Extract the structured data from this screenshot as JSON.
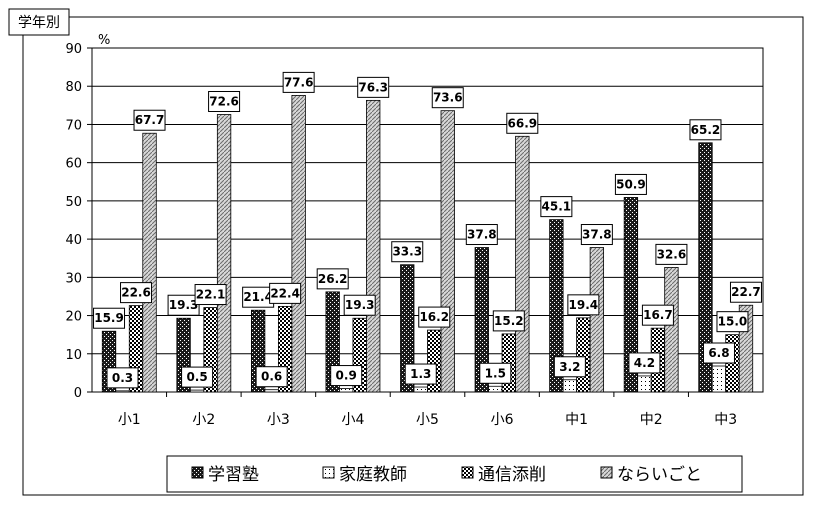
{
  "chart_data": {
    "type": "bar",
    "title": "学年別",
    "ylabel": "%",
    "ylim": [
      0,
      90
    ],
    "yticks": [
      0,
      10,
      20,
      30,
      40,
      50,
      60,
      70,
      80,
      90
    ],
    "grid": true,
    "legend_position": "bottom",
    "categories": [
      "小1",
      "小2",
      "小3",
      "小4",
      "小5",
      "小6",
      "中1",
      "中2",
      "中3"
    ],
    "series": [
      {
        "name": "学習塾",
        "pattern": "dark-hatch",
        "values": [
          15.9,
          19.3,
          21.4,
          26.2,
          33.3,
          37.8,
          45.1,
          50.9,
          65.2
        ]
      },
      {
        "name": "家庭教師",
        "pattern": "white-dots",
        "values": [
          0.3,
          0.5,
          0.6,
          0.9,
          1.3,
          1.5,
          3.2,
          4.2,
          6.8
        ]
      },
      {
        "name": "通信添削",
        "pattern": "checker",
        "values": [
          22.6,
          22.1,
          22.4,
          19.3,
          16.2,
          15.2,
          19.4,
          16.7,
          15.0
        ]
      },
      {
        "name": "ならいごと",
        "pattern": "light-diagonal",
        "values": [
          67.7,
          72.6,
          77.6,
          76.3,
          73.6,
          66.9,
          37.8,
          32.6,
          22.7
        ]
      }
    ]
  }
}
